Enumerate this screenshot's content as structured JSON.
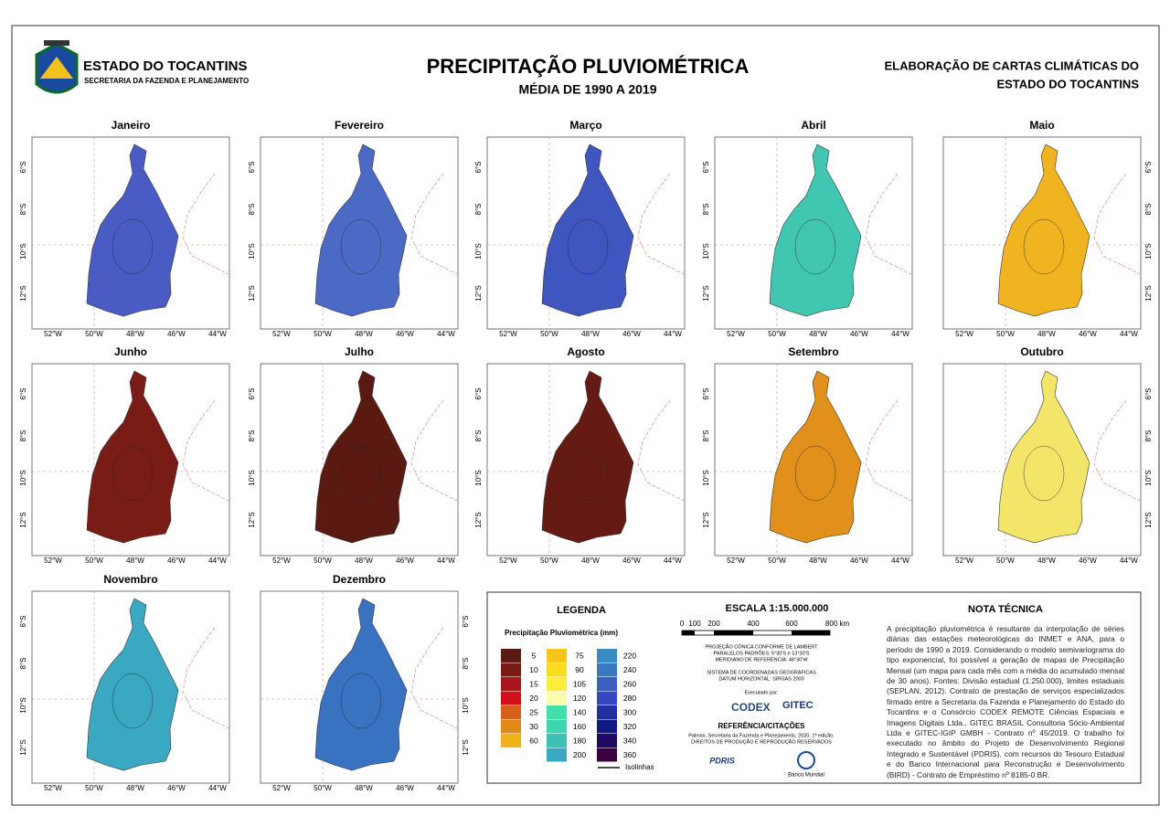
{
  "header": {
    "state": "ESTADO DO TOCANTINS",
    "secretariat": "SECRETARIA DA FAZENDA E PLANEJAMENTO",
    "title": "PRECIPITAÇÃO PLUVIOMÉTRICA",
    "subtitle": "MÉDIA DE 1990 A 2019",
    "project": [
      "ELABORAÇÃO DE CARTAS CLIMÁTICAS DO",
      "ESTADO DO TOCANTINS"
    ]
  },
  "x_labels": [
    "52°W",
    "50°W",
    "48°W",
    "46°W",
    "44°W"
  ],
  "y_labels": [
    "6°S",
    "8°S",
    "10°S",
    "12°S"
  ],
  "maps": [
    {
      "name": "Janeiro",
      "color": "#4a5cc4"
    },
    {
      "name": "Fevereiro",
      "color": "#4a6ac6"
    },
    {
      "name": "Março",
      "color": "#3f56c0"
    },
    {
      "name": "Abril",
      "color": "#41c6b2"
    },
    {
      "name": "Maio",
      "color": "#f0b420"
    },
    {
      "name": "Junho",
      "color": "#7a1c16"
    },
    {
      "name": "Julho",
      "color": "#5a1a12"
    },
    {
      "name": "Agosto",
      "color": "#661a14"
    },
    {
      "name": "Setembro",
      "color": "#e2901c"
    },
    {
      "name": "Outubro",
      "color": "#f3e46a"
    },
    {
      "name": "Novembro",
      "color": "#3aa8c0"
    },
    {
      "name": "Dezembro",
      "color": "#3a72c2"
    }
  ],
  "legend": {
    "title": "LEGENDA",
    "subtitle": "Precipitação Pluviométrica (mm)",
    "classes": [
      {
        "value": 5,
        "color": "#5a1a12"
      },
      {
        "value": 10,
        "color": "#7a1a14"
      },
      {
        "value": 15,
        "color": "#a8151a"
      },
      {
        "value": 20,
        "color": "#d2101a"
      },
      {
        "value": 25,
        "color": "#d9601a"
      },
      {
        "value": 30,
        "color": "#e08a1a"
      },
      {
        "value": 60,
        "color": "#f0b21a"
      },
      {
        "value": 75,
        "color": "#f5c51a"
      },
      {
        "value": 90,
        "color": "#f8dc20"
      },
      {
        "value": 105,
        "color": "#fbed3a"
      },
      {
        "value": 120,
        "color": "#fdfbb0"
      },
      {
        "value": 140,
        "color": "#40e0a8"
      },
      {
        "value": 160,
        "color": "#3fd4b0"
      },
      {
        "value": 180,
        "color": "#3fc0b5"
      },
      {
        "value": 200,
        "color": "#3aa8c0"
      },
      {
        "value": 220,
        "color": "#3a8cc0"
      },
      {
        "value": 240,
        "color": "#3a78c0"
      },
      {
        "value": 260,
        "color": "#3a60c0"
      },
      {
        "value": 280,
        "color": "#3548c0"
      },
      {
        "value": 300,
        "color": "#2030a0"
      },
      {
        "value": 320,
        "color": "#101a80"
      },
      {
        "value": 340,
        "color": "#200a60"
      },
      {
        "value": 360,
        "color": "#3a0040"
      }
    ],
    "isolines": "Isolinhas"
  },
  "scale": {
    "title": "ESCALA 1:15.000.000",
    "ticks": [
      "0",
      "100",
      "200",
      "400",
      "600",
      "800 km"
    ],
    "projection": [
      "PROJEÇÃO CÔNICA CONFORME DE LAMBERT",
      "PARALELOS PADRÕES: 5°30'S e 13°30'S",
      "MERIDIANO DE REFERÊNCIA: 48°30'W"
    ],
    "coordinates": [
      "SISTEMA DE COORDENADAS GEOGRÁFICAS",
      "DATUM HORIZONTAL: SIRGAS 2000"
    ],
    "executed_by": "Executado por:",
    "logos": [
      "CODEX",
      "GITEC"
    ],
    "references_title": "REFERÊNCIA/CITAÇÕES",
    "references": [
      "Palmas, Secretaria da Fazenda e Planejamento, 2020. 1ª edição.",
      "DIREITOS DE PRODUÇÃO E REPRODUÇÃO RESERVADOS"
    ],
    "sponsors": [
      "PDRIS",
      "Banco Mundial"
    ]
  },
  "note": {
    "title": "NOTA TÉCNICA",
    "text": "A precipitação pluviométrica é resultante da interpolação de séries diárias das estações meteorológicas do INMET e ANA, para o período de 1990 a 2019. Considerando o modelo semivariograma do tipo exponencial, foi possível a geração de mapas de Precipitação Mensal (um mapa para cada mês com a média do acumulado mensal de 30 anos). Fontes: Divisão estadual (1:250.000), limites estaduais (SEPLAN, 2012). Contrato de prestação de serviços especializados firmado entre a Secretaria da Fazenda e Planejamento do Estado do Tocantins e o Consórcio CODEX REMOTE Ciências Espaciais e Imagens Digitais Ltda., GITEC BRASIL Consultoria Sócio-Ambiental Ltda e GITEC-IGIP GMBH - Contrato nº 45/2019. O trabalho foi executado no âmbito do Projeto de Desenvolvimento Regional Integrado e Sustentável (PDRIS), com recursos do Tesouro Estadual e do Banco Internacional para Reconstrução e Desenvolvimento (BIRD) - Contrato de Empréstimo nº 8185-0 BR."
  }
}
